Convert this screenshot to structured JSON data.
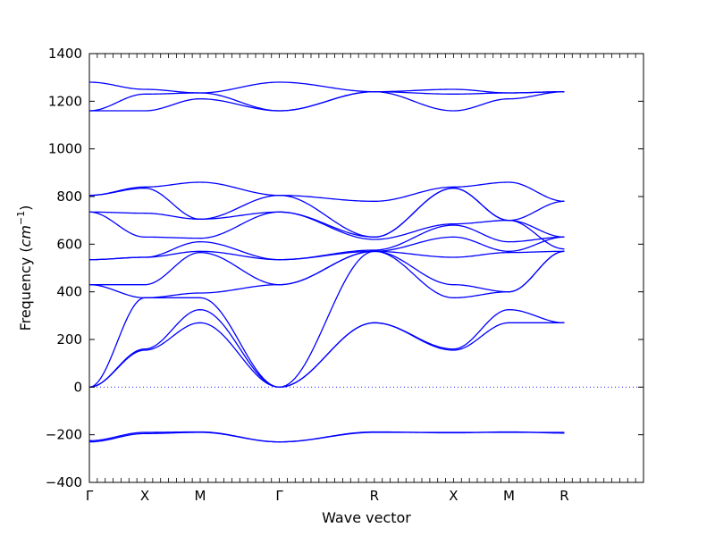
{
  "chart_data": {
    "type": "line",
    "title": "",
    "xlabel": "Wave vector",
    "ylabel_prefix": "Frequency (",
    "ylabel_unit_base": "cm",
    "ylabel_unit_exp": "−1",
    "ylabel_suffix": ")",
    "ylim": [
      -400,
      1400
    ],
    "yticks": [
      -400,
      -200,
      0,
      200,
      400,
      600,
      800,
      1000,
      1200,
      1400
    ],
    "xlim": [
      0,
      7
    ],
    "high_symmetry_points": [
      {
        "label": "Γ",
        "x": 0
      },
      {
        "label": "X",
        "x": 0.7
      },
      {
        "label": "M",
        "x": 1.4
      },
      {
        "label": "Γ",
        "x": 2.4
      },
      {
        "label": "R",
        "x": 3.6
      },
      {
        "label": "X",
        "x": 4.6
      },
      {
        "label": "M",
        "x": 5.3
      },
      {
        "label": "R",
        "x": 6.0
      }
    ],
    "zero_line": true,
    "grid": false,
    "legend": "none",
    "series_color": "#0000ff",
    "bands": [
      {
        "values": [
          -230,
          -195,
          -190,
          -230,
          -190,
          -190,
          -190,
          -190
        ]
      },
      {
        "values": [
          -225,
          -190,
          -188,
          -230,
          -188,
          -192,
          -188,
          -193
        ]
      },
      {
        "values": [
          0,
          155,
          270,
          0,
          270,
          155,
          270,
          270
        ]
      },
      {
        "values": [
          0,
          160,
          325,
          0,
          270,
          160,
          325,
          270
        ]
      },
      {
        "values": [
          0,
          375,
          375,
          0,
          570,
          375,
          400,
          570
        ]
      },
      {
        "values": [
          430,
          375,
          395,
          430,
          570,
          430,
          400,
          570
        ]
      },
      {
        "values": [
          430,
          430,
          565,
          430,
          570,
          545,
          565,
          570
        ]
      },
      {
        "values": [
          535,
          545,
          570,
          535,
          570,
          630,
          570,
          630
        ]
      },
      {
        "values": [
          535,
          545,
          610,
          535,
          575,
          680,
          610,
          630
        ]
      },
      {
        "values": [
          735,
          630,
          625,
          735,
          620,
          685,
          700,
          580
        ]
      },
      {
        "values": [
          735,
          730,
          705,
          735,
          630,
          835,
          700,
          630
        ]
      },
      {
        "values": [
          805,
          835,
          705,
          805,
          630,
          835,
          700,
          780
        ]
      },
      {
        "values": [
          805,
          840,
          860,
          805,
          780,
          840,
          860,
          780
        ]
      },
      {
        "values": [
          1160,
          1160,
          1210,
          1160,
          1240,
          1160,
          1210,
          1240
        ]
      },
      {
        "values": [
          1160,
          1230,
          1235,
          1160,
          1240,
          1230,
          1235,
          1240
        ]
      },
      {
        "values": [
          1280,
          1250,
          1235,
          1280,
          1240,
          1250,
          1235,
          1240
        ]
      }
    ]
  }
}
